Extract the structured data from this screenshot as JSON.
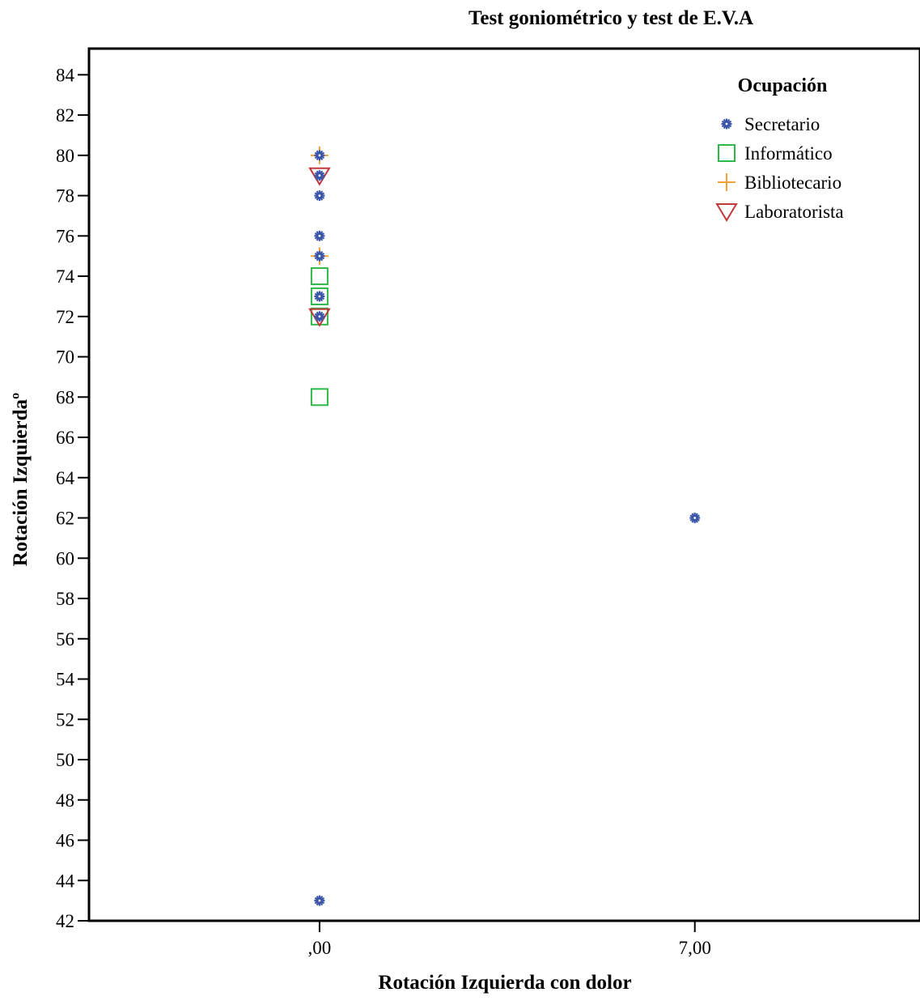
{
  "chart_data": {
    "type": "scatter",
    "title": "Test goniométrico y test de E.V.A",
    "xlabel": "Rotación Izquierda con dolor",
    "ylabel": "Rotación Izquierdaº",
    "x_ticks": [
      0,
      7
    ],
    "x_tick_labels": [
      ",00",
      "7,00"
    ],
    "xlim": [
      -4.3,
      11.2
    ],
    "ylim": [
      42,
      85.3
    ],
    "y_ticks": [
      42,
      44,
      46,
      48,
      50,
      52,
      54,
      56,
      58,
      60,
      62,
      64,
      66,
      68,
      70,
      72,
      74,
      76,
      78,
      80,
      82,
      84
    ],
    "grid": false,
    "legend": {
      "title": "Ocupación",
      "placement": "top-right"
    },
    "series": [
      {
        "name": "Secretario",
        "marker": "asterisk",
        "color": "#3a55a8",
        "points": [
          [
            0,
            80
          ],
          [
            0,
            79
          ],
          [
            0,
            78
          ],
          [
            0,
            76
          ],
          [
            0,
            75
          ],
          [
            0,
            73
          ],
          [
            0,
            72
          ],
          [
            0,
            43
          ],
          [
            7,
            62
          ]
        ]
      },
      {
        "name": "Informático",
        "marker": "square",
        "color": "#2fb84a",
        "points": [
          [
            0,
            74
          ],
          [
            0,
            73
          ],
          [
            0,
            72
          ],
          [
            0,
            68
          ]
        ]
      },
      {
        "name": "Bibliotecario",
        "marker": "plus",
        "color": "#f5a13a",
        "points": [
          [
            0,
            80
          ],
          [
            0,
            75
          ]
        ]
      },
      {
        "name": "Laboratorista",
        "marker": "triangle-down",
        "color": "#c0393b",
        "points": [
          [
            0,
            79
          ],
          [
            0,
            72
          ]
        ]
      }
    ]
  }
}
